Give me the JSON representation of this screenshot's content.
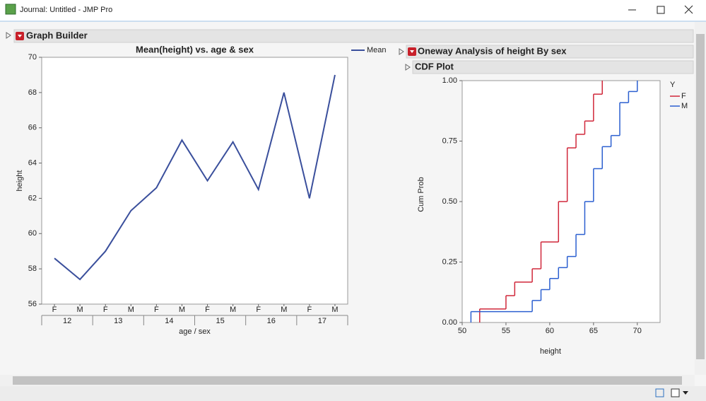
{
  "window": {
    "title": "Journal: Untitled - JMP Pro"
  },
  "panels": {
    "graph_builder": "Graph Builder",
    "oneway": "Oneway Analysis of height By sex",
    "cdf": "CDF Plot"
  },
  "chart_data": [
    {
      "type": "line",
      "title": "Mean(height) vs. age & sex",
      "x_label": "age / sex",
      "y_label": "height",
      "categories": [
        "F",
        "M",
        "F",
        "M",
        "F",
        "M",
        "F",
        "M",
        "F",
        "M",
        "F",
        "M"
      ],
      "x_groups": [
        "12",
        "13",
        "14",
        "15",
        "16",
        "17"
      ],
      "series": [
        {
          "name": "Mean",
          "color": "#3a4f9c",
          "values": [
            58.6,
            57.4,
            59.0,
            61.3,
            62.6,
            65.3,
            63.0,
            65.2,
            62.5,
            68.0,
            62.0,
            69.0
          ]
        }
      ],
      "ylim": [
        56,
        70
      ],
      "yticks": [
        56,
        58,
        60,
        62,
        64,
        66,
        68,
        70
      ]
    },
    {
      "type": "step",
      "x_label": "height",
      "y_label": "Cum Prob",
      "legend_title": "Y",
      "series": [
        {
          "name": "F",
          "color": "#d0273a",
          "x": [
            52,
            55,
            56,
            58,
            59,
            61,
            62,
            63,
            64,
            65,
            66
          ],
          "values": [
            0.056,
            0.111,
            0.167,
            0.222,
            0.333,
            0.5,
            0.722,
            0.778,
            0.833,
            0.944,
            1.0
          ]
        },
        {
          "name": "M",
          "color": "#2b5fd0",
          "x": [
            51,
            58,
            59,
            60,
            61,
            62,
            63,
            64,
            65,
            66,
            67,
            68,
            69,
            70
          ],
          "values": [
            0.045,
            0.091,
            0.136,
            0.182,
            0.227,
            0.273,
            0.364,
            0.5,
            0.636,
            0.727,
            0.773,
            0.909,
            0.955,
            1.0
          ]
        }
      ],
      "xlim": [
        50,
        72.6
      ],
      "xticks": [
        50,
        55,
        60,
        65,
        70
      ],
      "ylim": [
        0,
        1.0
      ],
      "yticks": [
        {
          "value": 0,
          "label": "0.00"
        },
        {
          "value": 0.25,
          "label": "0.25"
        },
        {
          "value": 0.5,
          "label": "0.50"
        },
        {
          "value": 0.75,
          "label": "0.75"
        },
        {
          "value": 1.0,
          "label": "1.00"
        }
      ]
    }
  ]
}
